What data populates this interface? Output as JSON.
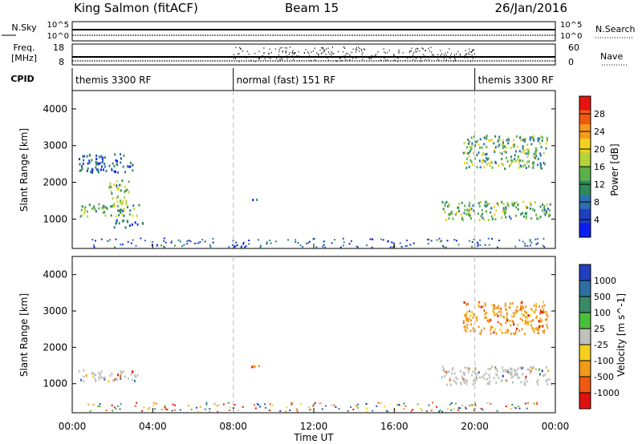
{
  "header": {
    "site": "King Salmon (fitACF)",
    "beam": "Beam 15",
    "date": "26/Jan/2016"
  },
  "top_panels": {
    "nsky_label": "N.Sky",
    "nsky_ticks": [
      "10^5",
      "10^0"
    ],
    "nsearch_label": "N.Search",
    "nsearch_ticks": [
      "10^5",
      "10^0"
    ],
    "freq_label_1": "Freq.",
    "freq_label_2": "[MHz]",
    "freq_ticks": [
      "18",
      "8"
    ],
    "nave_label": "Nave",
    "nave_ticks": [
      "60",
      "0"
    ],
    "cpid_label": "CPID",
    "cpid_segments": [
      {
        "label": "themis 3300 RF",
        "start_hour": 0,
        "end_hour": 8
      },
      {
        "label": "normal (fast) 151 RF",
        "start_hour": 8,
        "end_hour": 20
      },
      {
        "label": "themis 3300 RF",
        "start_hour": 20,
        "end_hour": 24
      }
    ]
  },
  "colorbars": {
    "power": {
      "label": "Power [dB]",
      "ticks": [
        "28",
        "24",
        "20",
        "16",
        "12",
        "8",
        "4"
      ],
      "colors": [
        "#e8140f",
        "#f05a0f",
        "#f79a1a",
        "#f2d21e",
        "#b3d43a",
        "#5bb04a",
        "#2f8a5a",
        "#2d6fb0",
        "#1e3fc0",
        "#0a1ef0"
      ]
    },
    "velocity": {
      "label": "Velocity [m s^-1]",
      "ticks": [
        "1000",
        "500",
        "100",
        "25",
        "-25",
        "-100",
        "-500",
        "-1000"
      ],
      "colors": [
        "#2040c0",
        "#2e6fa0",
        "#3a8a6a",
        "#4cbf3a",
        "#c0c0bc",
        "#f5d01e",
        "#f29a1a",
        "#f05a10",
        "#e01010"
      ]
    }
  },
  "chart_data": [
    {
      "type": "heatmap",
      "title": "",
      "ylabel": "Slant Range [km]",
      "xlabel": "",
      "xlim": [
        "00:00",
        "00:00"
      ],
      "ylim": [
        200,
        4500
      ],
      "yticks": [
        "4000",
        "3000",
        "2000",
        "1000"
      ],
      "colorbar": "Power [dB]",
      "regions": [
        {
          "t0": 0.3,
          "t1": 3.3,
          "r0": 1100,
          "r1": 1450,
          "level": "high"
        },
        {
          "t0": 0.3,
          "t1": 3.0,
          "r0": 2300,
          "r1": 2800,
          "level": "low"
        },
        {
          "t0": 1.8,
          "t1": 2.8,
          "r0": 1450,
          "r1": 2100,
          "level": "medium"
        },
        {
          "t0": 2.0,
          "t1": 3.6,
          "r0": 800,
          "r1": 1000,
          "level": "low"
        },
        {
          "t0": 18.3,
          "t1": 23.8,
          "r0": 1000,
          "r1": 1500,
          "level": "high"
        },
        {
          "t0": 19.4,
          "t1": 23.6,
          "r0": 2400,
          "r1": 3300,
          "level": "medium"
        },
        {
          "t0": 8.8,
          "t1": 9.3,
          "r0": 1500,
          "r1": 1600,
          "level": "low"
        }
      ]
    },
    {
      "type": "heatmap",
      "title": "",
      "ylabel": "Slant Range [km]",
      "xlabel": "Time UT",
      "xlim": [
        "00:00",
        "00:00"
      ],
      "ylim": [
        200,
        4500
      ],
      "yticks": [
        "4000",
        "3000",
        "2000",
        "1000"
      ],
      "xticks": [
        "00:00",
        "04:00",
        "08:00",
        "12:00",
        "16:00",
        "20:00",
        "00:00"
      ],
      "colorbar": "Velocity [m s^-1]",
      "regions": [
        {
          "t0": 0.3,
          "t1": 3.3,
          "r0": 1100,
          "r1": 1400,
          "level": "ground"
        },
        {
          "t0": 18.3,
          "t1": 23.8,
          "r0": 1000,
          "r1": 1500,
          "level": "ground"
        },
        {
          "t0": 19.4,
          "t1": 23.6,
          "r0": 2400,
          "r1": 3300,
          "level": "negative"
        },
        {
          "t0": 8.8,
          "t1": 9.3,
          "r0": 1450,
          "r1": 1600,
          "level": "negative"
        }
      ]
    }
  ]
}
